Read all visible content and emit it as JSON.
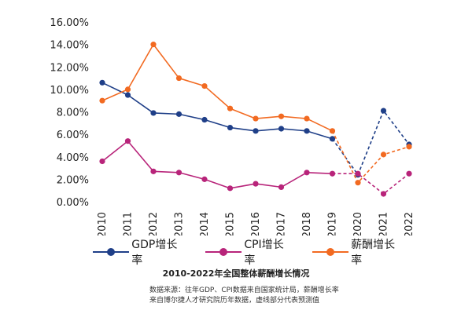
{
  "chart_data": {
    "type": "line",
    "title": "2010-2022年全国整体薪酬增长情况",
    "categories": [
      "2010",
      "2011",
      "2012",
      "2013",
      "2014",
      "2015",
      "2016",
      "2017",
      "2018",
      "2019",
      "2020",
      "2021",
      "2022"
    ],
    "ylim": [
      0,
      16
    ],
    "yticks": [
      "0.00%",
      "2.00%",
      "4.00%",
      "6.00%",
      "8.00%",
      "10.00%",
      "12.00%",
      "14.00%",
      "16.00%"
    ],
    "forecast_from_index": 10,
    "series": [
      {
        "name": "GDP增长率",
        "color": "#1f3f88",
        "values": [
          10.6,
          9.5,
          7.9,
          7.8,
          7.3,
          6.6,
          6.3,
          6.5,
          6.3,
          5.6,
          2.4,
          8.1,
          5.1
        ]
      },
      {
        "name": "CPI增长率",
        "color": "#b8247a",
        "values": [
          3.6,
          5.4,
          2.7,
          2.6,
          2.0,
          1.2,
          1.6,
          1.3,
          2.6,
          2.5,
          2.5,
          0.7,
          2.5
        ]
      },
      {
        "name": "薪酬增长率",
        "color": "#f26a21",
        "values": [
          9.0,
          10.0,
          14.0,
          11.0,
          10.3,
          8.3,
          7.4,
          7.6,
          7.4,
          6.3,
          1.7,
          4.2,
          4.9
        ]
      }
    ]
  },
  "note": {
    "line1": "数据来源：往年GDP、CPI数据来自国家统计局，薪酬增长率",
    "line2": "来自博尔捷人才研究院历年数据，虚线部分代表预测值"
  }
}
